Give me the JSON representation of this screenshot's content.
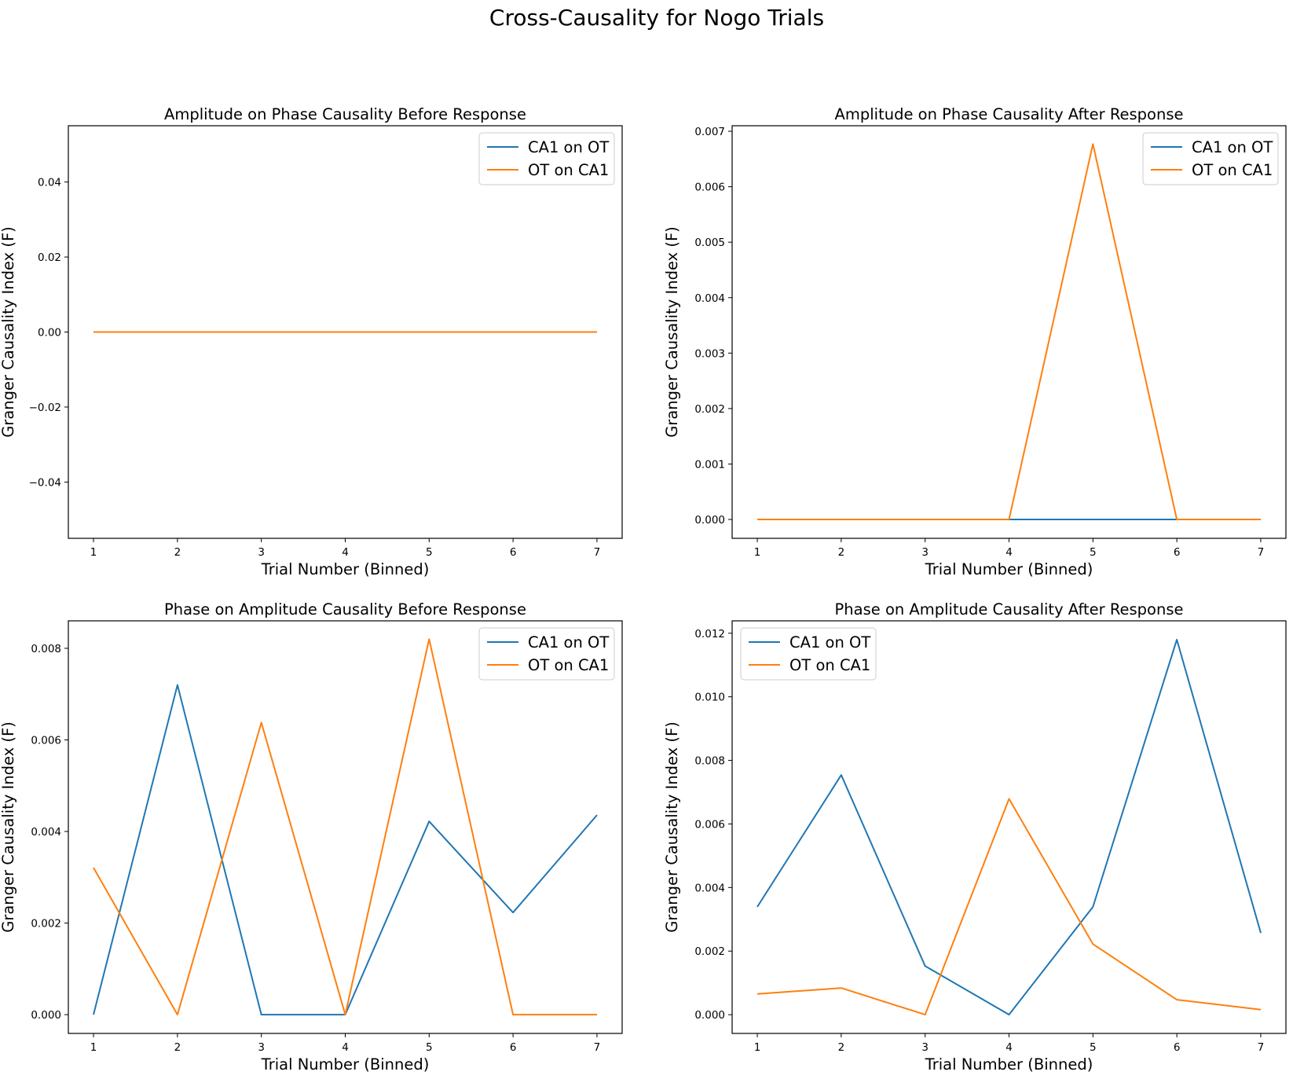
{
  "suptitle": "Cross-Causality for Nogo Trials",
  "colors": {
    "series1": "#1f77b4",
    "series2": "#ff7f0e",
    "axis": "#000000",
    "legend_border": "#cccccc"
  },
  "chart_data": [
    {
      "type": "line",
      "title": "Amplitude on Phase Causality Before Response",
      "xlabel": "Trial Number (Binned)",
      "ylabel": "Granger Causality Index (F)",
      "x": [
        1,
        2,
        3,
        4,
        5,
        6,
        7
      ],
      "xticks": [
        1,
        2,
        3,
        4,
        5,
        6,
        7
      ],
      "xlim": [
        0.7,
        7.3
      ],
      "ylim": [
        -0.055,
        0.055
      ],
      "yticks": [
        -0.04,
        -0.02,
        0.0,
        0.02,
        0.04
      ],
      "ytick_labels": [
        "−0.04",
        "−0.02",
        "0.00",
        "0.02",
        "0.04"
      ],
      "legend": "upper right",
      "grid": false,
      "series": [
        {
          "name": "CA1 on OT",
          "values": [
            0,
            0,
            0,
            0,
            0,
            0,
            0
          ]
        },
        {
          "name": "OT on CA1",
          "values": [
            0,
            0,
            0,
            0,
            0,
            0,
            0
          ]
        }
      ]
    },
    {
      "type": "line",
      "title": "Amplitude on Phase Causality After Response",
      "xlabel": "Trial Number (Binned)",
      "ylabel": "Granger Causality Index (F)",
      "x": [
        1,
        2,
        3,
        4,
        5,
        6,
        7
      ],
      "xticks": [
        1,
        2,
        3,
        4,
        5,
        6,
        7
      ],
      "xlim": [
        0.7,
        7.3
      ],
      "ylim": [
        -0.00034,
        0.0071
      ],
      "yticks": [
        0.0,
        0.001,
        0.002,
        0.003,
        0.004,
        0.005,
        0.006,
        0.007
      ],
      "ytick_labels": [
        "0.000",
        "0.001",
        "0.002",
        "0.003",
        "0.004",
        "0.005",
        "0.006",
        "0.007"
      ],
      "legend": "upper right",
      "grid": false,
      "series": [
        {
          "name": "CA1 on OT",
          "values": [
            0,
            0,
            0,
            0,
            0,
            0,
            0
          ]
        },
        {
          "name": "OT on CA1",
          "values": [
            0,
            0,
            0,
            0,
            0.00677,
            0,
            0
          ]
        }
      ]
    },
    {
      "type": "line",
      "title": "Phase on Amplitude Causality Before Response",
      "xlabel": "Trial Number (Binned)",
      "ylabel": "Granger Causality Index (F)",
      "x": [
        1,
        2,
        3,
        4,
        5,
        6,
        7
      ],
      "xticks": [
        1,
        2,
        3,
        4,
        5,
        6,
        7
      ],
      "xlim": [
        0.7,
        7.3
      ],
      "ylim": [
        -0.00041,
        0.0086
      ],
      "yticks": [
        0.0,
        0.002,
        0.004,
        0.006,
        0.008
      ],
      "ytick_labels": [
        "0.000",
        "0.002",
        "0.004",
        "0.006",
        "0.008"
      ],
      "legend": "upper right",
      "grid": false,
      "series": [
        {
          "name": "CA1 on OT",
          "values": [
            0,
            0.0072,
            0,
            0,
            0.00422,
            0.00223,
            0.00436
          ]
        },
        {
          "name": "OT on CA1",
          "values": [
            0.00321,
            0,
            0.00638,
            0,
            0.0082,
            0,
            0
          ]
        }
      ]
    },
    {
      "type": "line",
      "title": "Phase on Amplitude Causality After Response",
      "xlabel": "Trial Number (Binned)",
      "ylabel": "Granger Causality Index (F)",
      "x": [
        1,
        2,
        3,
        4,
        5,
        6,
        7
      ],
      "xticks": [
        1,
        2,
        3,
        4,
        5,
        6,
        7
      ],
      "xlim": [
        0.7,
        7.3
      ],
      "ylim": [
        -0.00059,
        0.01239
      ],
      "yticks": [
        0.0,
        0.002,
        0.004,
        0.006,
        0.008,
        0.01,
        0.012
      ],
      "ytick_labels": [
        "0.000",
        "0.002",
        "0.004",
        "0.006",
        "0.008",
        "0.010",
        "0.012"
      ],
      "legend": "upper left",
      "grid": false,
      "series": [
        {
          "name": "CA1 on OT",
          "values": [
            0.00339,
            0.00754,
            0.00153,
            0,
            0.00339,
            0.0118,
            0.00257
          ]
        },
        {
          "name": "OT on CA1",
          "values": [
            0.00065,
            0.00084,
            0,
            0.00679,
            0.00222,
            0.00047,
            0.00016
          ]
        }
      ]
    }
  ]
}
